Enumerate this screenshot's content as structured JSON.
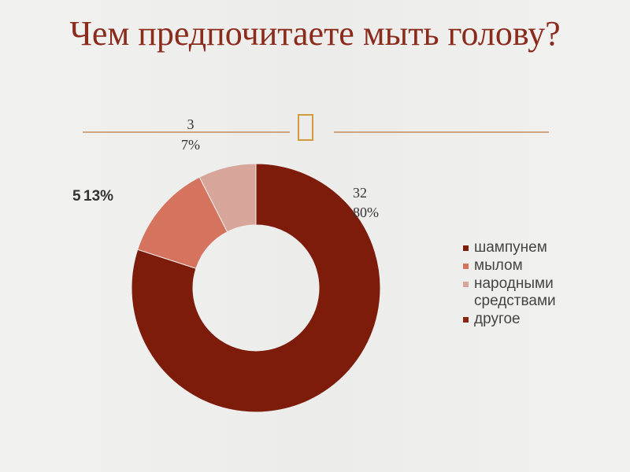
{
  "chart_data": {
    "type": "donut",
    "title": "Чем предпочитаете мыть голову?",
    "categories": [
      "шампунем",
      "мылом",
      "народными средствами",
      "другое"
    ],
    "values": [
      32,
      5,
      3,
      0
    ],
    "percent_labels": [
      "80%",
      "13%",
      "7%",
      null
    ],
    "colors": [
      "#7e1c0c",
      "#d5735e",
      "#d8a59b",
      "#8a2513"
    ],
    "legend": "right"
  }
}
